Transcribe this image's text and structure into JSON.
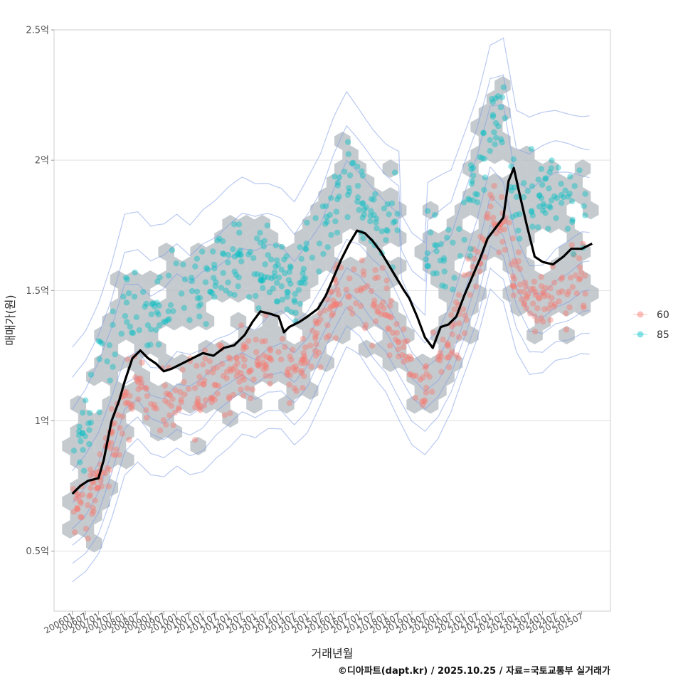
{
  "chart_data": {
    "type": "scatter",
    "title": "",
    "xlabel": "거래년월",
    "ylabel": "매매가(원)",
    "caption": "©디아파트(dapt.kr) / 2025.10.25 / 자료=국토교통부 실거래가",
    "ylim": [
      0.27,
      2.5
    ],
    "xlim": [
      2005.3,
      2026.6
    ],
    "y_ticks": [
      {
        "value": 0.5,
        "label": "0.5억"
      },
      {
        "value": 1.0,
        "label": "1억"
      },
      {
        "value": 1.5,
        "label": "1.5억"
      },
      {
        "value": 2.0,
        "label": "2억"
      },
      {
        "value": 2.5,
        "label": "2.5억"
      }
    ],
    "x_tick_labels": [
      "200601",
      "200607",
      "200701",
      "200707",
      "200801",
      "200807",
      "200901",
      "200907",
      "201001",
      "201007",
      "201101",
      "201107",
      "201201",
      "201207",
      "201301",
      "201307",
      "201401",
      "201407",
      "201501",
      "201507",
      "201601",
      "201607",
      "201701",
      "201707",
      "201801",
      "201807",
      "201901",
      "201907",
      "202001",
      "202007",
      "202101",
      "202107",
      "202201",
      "202207",
      "202301",
      "202307",
      "202401",
      "202407",
      "202501",
      "202507"
    ],
    "legend": {
      "position": "right",
      "entries": [
        {
          "label": "60",
          "color": "#F8766D"
        },
        {
          "label": "85",
          "color": "#00BFC4"
        }
      ]
    },
    "colors": {
      "s60": "#F8766D",
      "s85": "#00BFC4",
      "hex": "#B4BBC0",
      "contour": "#7F9CE6",
      "trend": "#000000",
      "grid": "#E2E2E2",
      "frame": "#CCCCCC"
    },
    "series": [
      {
        "name": "60",
        "anchors": [
          [
            2006.0,
            0.65
          ],
          [
            2006.5,
            0.7
          ],
          [
            2007.0,
            0.78
          ],
          [
            2007.5,
            0.92
          ],
          [
            2008.0,
            1.08
          ],
          [
            2008.5,
            1.12
          ],
          [
            2009.0,
            1.06
          ],
          [
            2009.5,
            1.05
          ],
          [
            2010.0,
            1.1
          ],
          [
            2010.5,
            1.08
          ],
          [
            2011.0,
            1.1
          ],
          [
            2011.5,
            1.15
          ],
          [
            2012.0,
            1.18
          ],
          [
            2012.5,
            1.22
          ],
          [
            2013.0,
            1.2
          ],
          [
            2013.5,
            1.24
          ],
          [
            2014.0,
            1.25
          ],
          [
            2014.5,
            1.2
          ],
          [
            2015.0,
            1.25
          ],
          [
            2015.5,
            1.35
          ],
          [
            2016.0,
            1.45
          ],
          [
            2016.5,
            1.55
          ],
          [
            2017.0,
            1.52
          ],
          [
            2017.5,
            1.45
          ],
          [
            2018.0,
            1.4
          ],
          [
            2018.5,
            1.3
          ],
          [
            2019.0,
            1.2
          ],
          [
            2019.5,
            1.15
          ],
          [
            2020.0,
            1.2
          ],
          [
            2020.5,
            1.3
          ],
          [
            2021.0,
            1.45
          ],
          [
            2021.5,
            1.6
          ],
          [
            2022.0,
            1.8
          ],
          [
            2022.5,
            1.75
          ],
          [
            2023.0,
            1.55
          ],
          [
            2023.5,
            1.45
          ],
          [
            2024.0,
            1.45
          ],
          [
            2024.5,
            1.5
          ],
          [
            2025.0,
            1.52
          ],
          [
            2025.5,
            1.55
          ]
        ]
      },
      {
        "name": "85",
        "anchors": [
          [
            2006.0,
            0.9
          ],
          [
            2006.5,
            1.0
          ],
          [
            2007.0,
            1.15
          ],
          [
            2007.5,
            1.3
          ],
          [
            2008.0,
            1.5
          ],
          [
            2008.5,
            1.45
          ],
          [
            2009.0,
            1.4
          ],
          [
            2009.5,
            1.45
          ],
          [
            2010.0,
            1.5
          ],
          [
            2010.5,
            1.45
          ],
          [
            2011.0,
            1.55
          ],
          [
            2011.5,
            1.55
          ],
          [
            2012.0,
            1.6
          ],
          [
            2012.5,
            1.62
          ],
          [
            2013.0,
            1.6
          ],
          [
            2013.5,
            1.58
          ],
          [
            2014.0,
            1.55
          ],
          [
            2014.5,
            1.5
          ],
          [
            2015.0,
            1.62
          ],
          [
            2015.5,
            1.68
          ],
          [
            2016.0,
            1.85
          ],
          [
            2016.5,
            1.95
          ],
          [
            2017.0,
            1.85
          ],
          [
            2017.5,
            1.8
          ],
          [
            2018.0,
            1.75
          ],
          [
            2018.5,
            1.8
          ],
          [
            2019.0,
            null
          ],
          [
            2019.5,
            null
          ],
          [
            2020.0,
            1.65
          ],
          [
            2020.5,
            1.6
          ],
          [
            2021.0,
            1.75
          ],
          [
            2021.5,
            1.9
          ],
          [
            2022.0,
            2.1
          ],
          [
            2022.5,
            2.2
          ],
          [
            2023.0,
            1.8
          ],
          [
            2023.5,
            1.85
          ],
          [
            2024.0,
            1.9
          ],
          [
            2024.5,
            1.88
          ],
          [
            2025.0,
            1.85
          ],
          [
            2025.5,
            1.8
          ]
        ]
      },
      {
        "name": "moving-average",
        "values": [
          [
            2006.0,
            0.72
          ],
          [
            2006.3,
            0.75
          ],
          [
            2006.6,
            0.77
          ],
          [
            2007.0,
            0.78
          ],
          [
            2007.2,
            0.85
          ],
          [
            2007.5,
            1.0
          ],
          [
            2007.8,
            1.08
          ],
          [
            2008.0,
            1.15
          ],
          [
            2008.3,
            1.24
          ],
          [
            2008.6,
            1.27
          ],
          [
            2008.9,
            1.24
          ],
          [
            2009.2,
            1.22
          ],
          [
            2009.5,
            1.19
          ],
          [
            2009.8,
            1.2
          ],
          [
            2010.2,
            1.22
          ],
          [
            2010.6,
            1.24
          ],
          [
            2011.0,
            1.26
          ],
          [
            2011.4,
            1.25
          ],
          [
            2011.8,
            1.28
          ],
          [
            2012.2,
            1.29
          ],
          [
            2012.6,
            1.33
          ],
          [
            2012.9,
            1.38
          ],
          [
            2013.2,
            1.42
          ],
          [
            2013.6,
            1.41
          ],
          [
            2013.9,
            1.4
          ],
          [
            2014.1,
            1.34
          ],
          [
            2014.3,
            1.36
          ],
          [
            2014.7,
            1.38
          ],
          [
            2015.0,
            1.4
          ],
          [
            2015.4,
            1.43
          ],
          [
            2015.7,
            1.48
          ],
          [
            2016.0,
            1.55
          ],
          [
            2016.3,
            1.62
          ],
          [
            2016.6,
            1.68
          ],
          [
            2016.9,
            1.73
          ],
          [
            2017.2,
            1.72
          ],
          [
            2017.5,
            1.69
          ],
          [
            2017.8,
            1.65
          ],
          [
            2018.1,
            1.6
          ],
          [
            2018.4,
            1.55
          ],
          [
            2018.7,
            1.5
          ],
          [
            2018.9,
            1.47
          ],
          [
            2019.2,
            1.4
          ],
          [
            2019.5,
            1.32
          ],
          [
            2019.8,
            1.28
          ],
          [
            2020.1,
            1.36
          ],
          [
            2020.4,
            1.37
          ],
          [
            2020.7,
            1.4
          ],
          [
            2021.0,
            1.48
          ],
          [
            2021.3,
            1.55
          ],
          [
            2021.6,
            1.62
          ],
          [
            2021.9,
            1.7
          ],
          [
            2022.2,
            1.74
          ],
          [
            2022.5,
            1.78
          ],
          [
            2022.7,
            1.92
          ],
          [
            2022.9,
            1.97
          ],
          [
            2023.1,
            1.88
          ],
          [
            2023.4,
            1.75
          ],
          [
            2023.7,
            1.63
          ],
          [
            2024.0,
            1.61
          ],
          [
            2024.4,
            1.6
          ],
          [
            2024.8,
            1.63
          ],
          [
            2025.1,
            1.66
          ],
          [
            2025.5,
            1.66
          ],
          [
            2025.9,
            1.68
          ]
        ]
      }
    ]
  }
}
